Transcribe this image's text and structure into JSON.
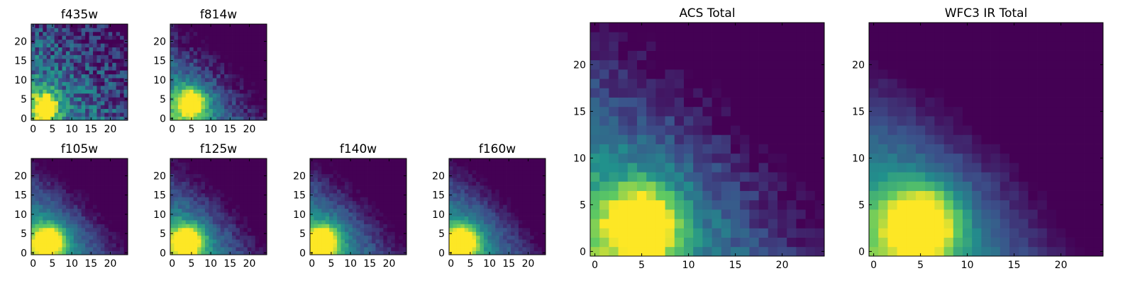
{
  "colormap": [
    "#440154",
    "#3b528b",
    "#21918c",
    "#5ec962",
    "#fde725"
  ],
  "chart_data": [
    {
      "type": "heatmap",
      "title": "f435w",
      "grid_size": 25,
      "peak": [
        3,
        3
      ],
      "peak_width": 2.5,
      "halo": 0.15,
      "noise": 0.45,
      "falloff": 0.01,
      "xticks": [
        "0",
        "5",
        "10",
        "15",
        "20"
      ],
      "yticks": [
        "0",
        "5",
        "10",
        "15",
        "20"
      ],
      "xlim": [
        0,
        24
      ],
      "ylim": [
        0,
        24
      ]
    },
    {
      "type": "heatmap",
      "title": "f814w",
      "grid_size": 25,
      "peak": [
        5,
        4
      ],
      "peak_width": 2.5,
      "halo": 0.35,
      "noise": 0.22,
      "falloff": 0.02,
      "xticks": [
        "0",
        "5",
        "10",
        "15",
        "20"
      ],
      "yticks": [
        "0",
        "5",
        "10",
        "15",
        "20"
      ],
      "xlim": [
        0,
        24
      ],
      "ylim": [
        0,
        24
      ]
    },
    {
      "type": "heatmap",
      "title": "f105w",
      "grid_size": 25,
      "peak": [
        4,
        3
      ],
      "peak_width": 2.7,
      "halo": 0.4,
      "noise": 0.12,
      "falloff": 0.02,
      "xticks": [
        "0",
        "5",
        "10",
        "15",
        "20"
      ],
      "yticks": [
        "0",
        "5",
        "10",
        "15",
        "20"
      ],
      "xlim": [
        0,
        24
      ],
      "ylim": [
        0,
        24
      ]
    },
    {
      "type": "heatmap",
      "title": "f125w",
      "grid_size": 25,
      "peak": [
        4,
        3
      ],
      "peak_width": 2.7,
      "halo": 0.4,
      "noise": 0.14,
      "falloff": 0.02,
      "xticks": [
        "0",
        "5",
        "10",
        "15",
        "20"
      ],
      "yticks": [
        "0",
        "5",
        "10",
        "15",
        "20"
      ],
      "xlim": [
        0,
        24
      ],
      "ylim": [
        0,
        24
      ]
    },
    {
      "type": "heatmap",
      "title": "f140w",
      "grid_size": 25,
      "peak": [
        3,
        3
      ],
      "peak_width": 2.6,
      "halo": 0.42,
      "noise": 0.13,
      "falloff": 0.02,
      "xticks": [
        "0",
        "5",
        "10",
        "15",
        "20"
      ],
      "yticks": [
        "0",
        "5",
        "10",
        "15",
        "20"
      ],
      "xlim": [
        0,
        24
      ],
      "ylim": [
        0,
        24
      ]
    },
    {
      "type": "heatmap",
      "title": "f160w",
      "grid_size": 25,
      "peak": [
        3,
        3
      ],
      "peak_width": 2.6,
      "halo": 0.42,
      "noise": 0.12,
      "falloff": 0.02,
      "xticks": [
        "0",
        "5",
        "10",
        "15",
        "20"
      ],
      "yticks": [
        "0",
        "5",
        "10",
        "15",
        "20"
      ],
      "xlim": [
        0,
        24
      ],
      "ylim": [
        0,
        24
      ]
    },
    {
      "type": "heatmap",
      "title": "ACS Total",
      "grid_size": 25,
      "peak": [
        5,
        3
      ],
      "peak_width": 2.6,
      "halo": 0.45,
      "noise": 0.18,
      "falloff": 0.02,
      "xticks": [
        "0",
        "5",
        "10",
        "15",
        "20"
      ],
      "yticks": [
        "0",
        "5",
        "10",
        "15",
        "20"
      ],
      "xlim": [
        0,
        24
      ],
      "ylim": [
        0,
        24
      ]
    },
    {
      "type": "heatmap",
      "title": "WFC3 IR Total",
      "grid_size": 25,
      "peak": [
        5,
        3
      ],
      "peak_width": 2.6,
      "halo": 0.45,
      "noise": 0.08,
      "falloff": 0.025,
      "xticks": [
        "0",
        "5",
        "10",
        "15",
        "20"
      ],
      "yticks": [
        "0",
        "5",
        "10",
        "15",
        "20"
      ],
      "xlim": [
        0,
        24
      ],
      "ylim": [
        0,
        24
      ]
    }
  ]
}
